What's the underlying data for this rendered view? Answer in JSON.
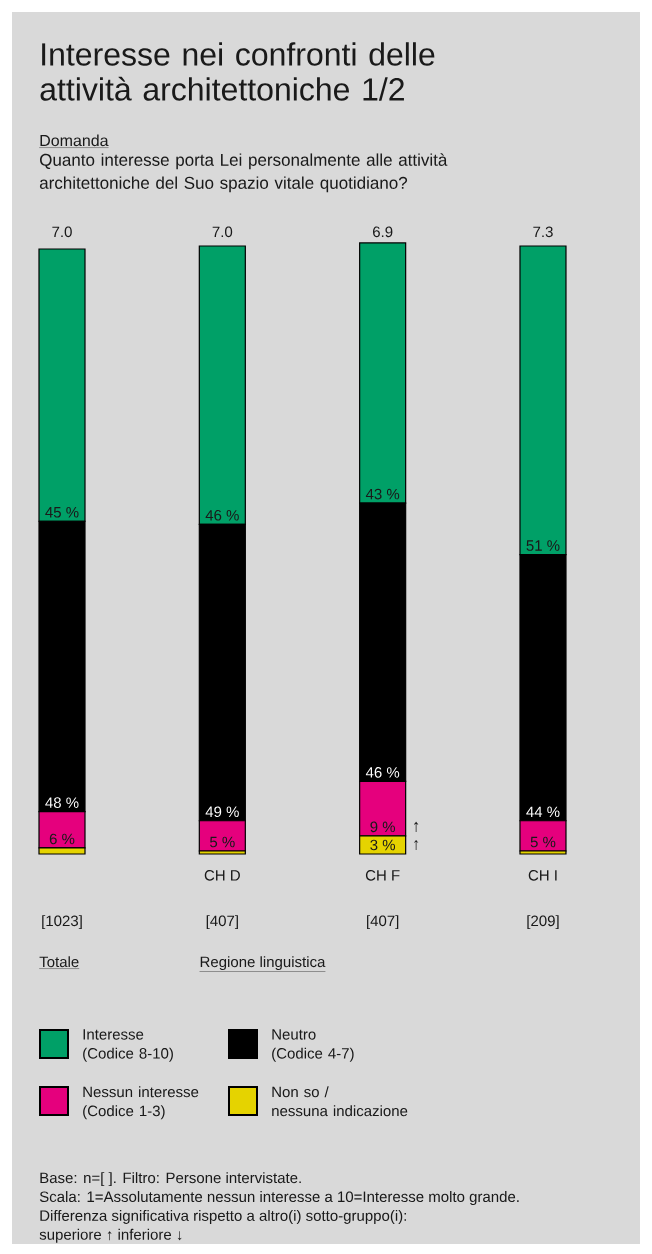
{
  "chart_data": {
    "type": "bar",
    "stacked": true,
    "tick_labels": "x",
    "legend": "bottom",
    "title": "Interesse nei confronti delle attività architettoniche 1/2",
    "subtitle": "Quanto interesse porta Lei personalmente alle attività architettoniche del Suo spazio vitale quotidiano?",
    "categories": [
      null,
      "CH D",
      "CH F",
      "CH I"
    ],
    "series": [
      {
        "name": "Non so /\nnessuna indicazione",
        "color": "#e5d300",
        "values": [
          1,
          0.5,
          3,
          0.5
        ],
        "value_labels": [
          null,
          null,
          "3 %",
          null
        ]
      },
      {
        "name": "Nessun interesse\n(Codice 1-3)",
        "color": "#e5007d",
        "values": [
          6,
          5,
          9,
          5
        ],
        "value_labels": [
          "6 %",
          "5 %",
          "9 %",
          "5 %"
        ]
      },
      {
        "name": "Neutro\n(Codice 4-7)",
        "color": "#000000",
        "values": [
          48,
          49,
          46,
          44
        ],
        "value_labels": [
          "48 %",
          "49 %",
          "46 %",
          "44 %"
        ]
      },
      {
        "name": "Interesse\n(Codice 8-10)",
        "color": "#00a067",
        "values": [
          45,
          46,
          43,
          51
        ],
        "value_labels": [
          "45 %",
          "46 %",
          "43 %",
          "51 %"
        ]
      }
    ],
    "annotations": [
      "Domanda",
      "7.0",
      "7.0",
      "6.9",
      "7.3",
      "[1023]",
      "[407]",
      "[407]",
      "[209]",
      "Totale",
      "Regione linguistica",
      "↑",
      "↑",
      "Base: n=[ ]. Filtro: Persone intervistate.",
      "Scala: 1=Assolutamente nessun interesse a 10=Interesse molto grande.",
      "Differenza significativa rispetto a altro(i) sotto-gruppo(i):",
      "superiore ↑ inferiore ↓"
    ]
  }
}
